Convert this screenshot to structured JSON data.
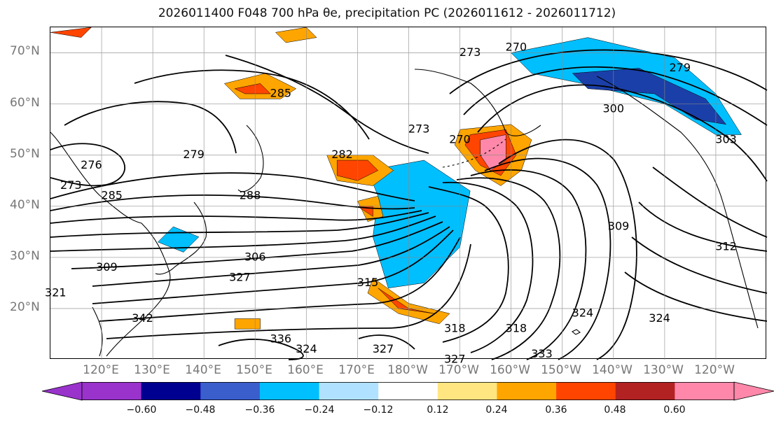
{
  "title": "2026011400 F048 700 hPa θe, precipitation PC (2026011612 - 2026011712)",
  "map": {
    "projection": "PlateCarree",
    "lat_range": [
      10,
      75
    ],
    "lon_range": [
      110,
      250
    ],
    "gridlines": true,
    "lat_labels": [
      "70°N",
      "60°N",
      "50°N",
      "40°N",
      "30°N",
      "20°N"
    ],
    "lon_labels": [
      "120°E",
      "130°E",
      "140°E",
      "150°E",
      "160°E",
      "170°E",
      "180°W",
      "170°W",
      "160°W",
      "150°W",
      "140°W",
      "130°W",
      "120°W"
    ],
    "contour_variable": "700 hPa theta-e (K)",
    "contour_labels": [
      {
        "text": "270",
        "lon": 201,
        "lat": 71
      },
      {
        "text": "273",
        "lon": 192,
        "lat": 70
      },
      {
        "text": "279",
        "lon": 233,
        "lat": 67
      },
      {
        "text": "285",
        "lon": 155,
        "lat": 62
      },
      {
        "text": "273",
        "lon": 182,
        "lat": 55
      },
      {
        "text": "270",
        "lon": 190,
        "lat": 53
      },
      {
        "text": "300",
        "lon": 220,
        "lat": 59
      },
      {
        "text": "303",
        "lon": 242,
        "lat": 53
      },
      {
        "text": "279",
        "lon": 138,
        "lat": 50
      },
      {
        "text": "282",
        "lon": 167,
        "lat": 50
      },
      {
        "text": "276",
        "lon": 118,
        "lat": 48
      },
      {
        "text": "273",
        "lon": 114,
        "lat": 44
      },
      {
        "text": "285",
        "lon": 122,
        "lat": 42
      },
      {
        "text": "288",
        "lon": 149,
        "lat": 42
      },
      {
        "text": "309",
        "lon": 221,
        "lat": 36
      },
      {
        "text": "312",
        "lon": 242,
        "lat": 32
      },
      {
        "text": "306",
        "lon": 150,
        "lat": 30
      },
      {
        "text": "309",
        "lon": 121,
        "lat": 28
      },
      {
        "text": "327",
        "lon": 147,
        "lat": 26
      },
      {
        "text": "315",
        "lon": 172,
        "lat": 25
      },
      {
        "text": "321",
        "lon": 111,
        "lat": 23
      },
      {
        "text": "318",
        "lon": 189,
        "lat": 16
      },
      {
        "text": "318",
        "lon": 201,
        "lat": 16
      },
      {
        "text": "324",
        "lon": 214,
        "lat": 19
      },
      {
        "text": "324",
        "lon": 229,
        "lat": 18
      },
      {
        "text": "336",
        "lon": 155,
        "lat": 14
      },
      {
        "text": "324",
        "lon": 160,
        "lat": 12
      },
      {
        "text": "327",
        "lon": 175,
        "lat": 12
      },
      {
        "text": "327",
        "lon": 189,
        "lat": 10
      },
      {
        "text": "333",
        "lon": 206,
        "lat": 11
      },
      {
        "text": "342",
        "lon": 128,
        "lat": 18
      }
    ],
    "precip_shading": [
      {
        "level": "neg",
        "color": "#9933cc",
        "points": [
          [
            177,
            43
          ],
          [
            183,
            44
          ],
          [
            186,
            40
          ],
          [
            183,
            37
          ],
          [
            178,
            40
          ]
        ]
      },
      {
        "level": "neg",
        "color": "#1b3fa8",
        "points": [
          [
            177,
            47
          ],
          [
            186,
            45
          ],
          [
            189,
            40
          ],
          [
            185,
            35
          ],
          [
            179,
            34
          ],
          [
            174,
            40
          ]
        ]
      },
      {
        "level": "neg",
        "color": "#00bfff",
        "points": [
          [
            172,
            47
          ],
          [
            183,
            49
          ],
          [
            192,
            43
          ],
          [
            190,
            32
          ],
          [
            183,
            25
          ],
          [
            176,
            24
          ],
          [
            173,
            34
          ],
          [
            174,
            42
          ]
        ]
      },
      {
        "level": "neg",
        "color": "#00bfff",
        "points": [
          [
            200,
            70
          ],
          [
            215,
            73
          ],
          [
            232,
            69
          ],
          [
            240,
            62
          ],
          [
            245,
            54
          ],
          [
            240,
            54
          ],
          [
            230,
            60
          ],
          [
            214,
            64
          ],
          [
            204,
            66
          ]
        ]
      },
      {
        "level": "neg",
        "color": "#1b3fa8",
        "points": [
          [
            212,
            66
          ],
          [
            225,
            67
          ],
          [
            238,
            61
          ],
          [
            242,
            56
          ],
          [
            236,
            57
          ],
          [
            228,
            62
          ],
          [
            215,
            63
          ]
        ]
      },
      {
        "level": "neg",
        "color": "#00bfff",
        "points": [
          [
            134,
            36
          ],
          [
            139,
            34
          ],
          [
            136,
            31
          ],
          [
            131,
            33
          ]
        ]
      },
      {
        "level": "pos",
        "color": "#ffa500",
        "points": [
          [
            164,
            50
          ],
          [
            173,
            50
          ],
          [
            177,
            47
          ],
          [
            173,
            44
          ],
          [
            166,
            45
          ]
        ]
      },
      {
        "level": "pos",
        "color": "#ff4500",
        "points": [
          [
            166,
            49
          ],
          [
            172,
            49
          ],
          [
            174,
            47
          ],
          [
            170,
            45
          ],
          [
            166,
            46
          ]
        ]
      },
      {
        "level": "pos",
        "color": "#ffa500",
        "points": [
          [
            190,
            55
          ],
          [
            200,
            56
          ],
          [
            204,
            53
          ],
          [
            202,
            47
          ],
          [
            198,
            44
          ],
          [
            193,
            47
          ],
          [
            189,
            52
          ]
        ]
      },
      {
        "level": "pos",
        "color": "#ff4500",
        "points": [
          [
            192,
            54
          ],
          [
            199,
            55
          ],
          [
            201,
            50
          ],
          [
            198,
            46
          ],
          [
            194,
            48
          ],
          [
            191,
            52
          ]
        ]
      },
      {
        "level": "pos",
        "color": "#ff88aa",
        "points": [
          [
            194,
            53
          ],
          [
            199,
            54
          ],
          [
            199,
            49
          ],
          [
            196,
            47
          ],
          [
            194,
            50
          ]
        ]
      },
      {
        "level": "pos",
        "color": "#ffa500",
        "points": [
          [
            173,
            26
          ],
          [
            180,
            21
          ],
          [
            188,
            19
          ],
          [
            186,
            17
          ],
          [
            178,
            19
          ],
          [
            172,
            23
          ]
        ]
      },
      {
        "level": "pos",
        "color": "#ff4500",
        "points": [
          [
            174,
            24
          ],
          [
            180,
            20
          ],
          [
            185,
            19
          ],
          [
            178,
            20
          ]
        ]
      },
      {
        "level": "pos",
        "color": "#ffa500",
        "points": [
          [
            144,
            64
          ],
          [
            152,
            66
          ],
          [
            158,
            63
          ],
          [
            155,
            61
          ],
          [
            147,
            61
          ]
        ]
      },
      {
        "level": "pos",
        "color": "#ff4500",
        "points": [
          [
            146,
            63
          ],
          [
            151,
            64
          ],
          [
            153,
            62
          ],
          [
            148,
            62
          ]
        ]
      },
      {
        "level": "pos",
        "color": "#ffa500",
        "points": [
          [
            170,
            41
          ],
          [
            174,
            42
          ],
          [
            175,
            38
          ],
          [
            172,
            37
          ]
        ]
      },
      {
        "level": "pos",
        "color": "#ff4500",
        "points": [
          [
            170,
            40
          ],
          [
            173,
            40
          ],
          [
            173,
            38
          ]
        ]
      },
      {
        "level": "pos",
        "color": "#ffa500",
        "points": [
          [
            146,
            18
          ],
          [
            151,
            18
          ],
          [
            151,
            16
          ],
          [
            146,
            16
          ]
        ]
      },
      {
        "level": "pos",
        "color": "#ff4500",
        "points": [
          [
            110,
            74
          ],
          [
            118,
            75
          ],
          [
            116,
            73
          ]
        ]
      },
      {
        "level": "pos",
        "color": "#ffa500",
        "points": [
          [
            154,
            74
          ],
          [
            160,
            75
          ],
          [
            162,
            73
          ],
          [
            156,
            72
          ]
        ]
      }
    ]
  },
  "colorbar": {
    "ticks": [
      "−0.60",
      "−0.48",
      "−0.36",
      "−0.24",
      "−0.12",
      "0.12",
      "0.24",
      "0.36",
      "0.48",
      "0.60"
    ],
    "colors": [
      "#9933cc",
      "#000090",
      "#3a5fcd",
      "#00bfff",
      "#b0e2ff",
      "#ffffff",
      "#ffe680",
      "#ffa500",
      "#ff4500",
      "#b22222",
      "#ff88aa"
    ],
    "extend": "both"
  }
}
